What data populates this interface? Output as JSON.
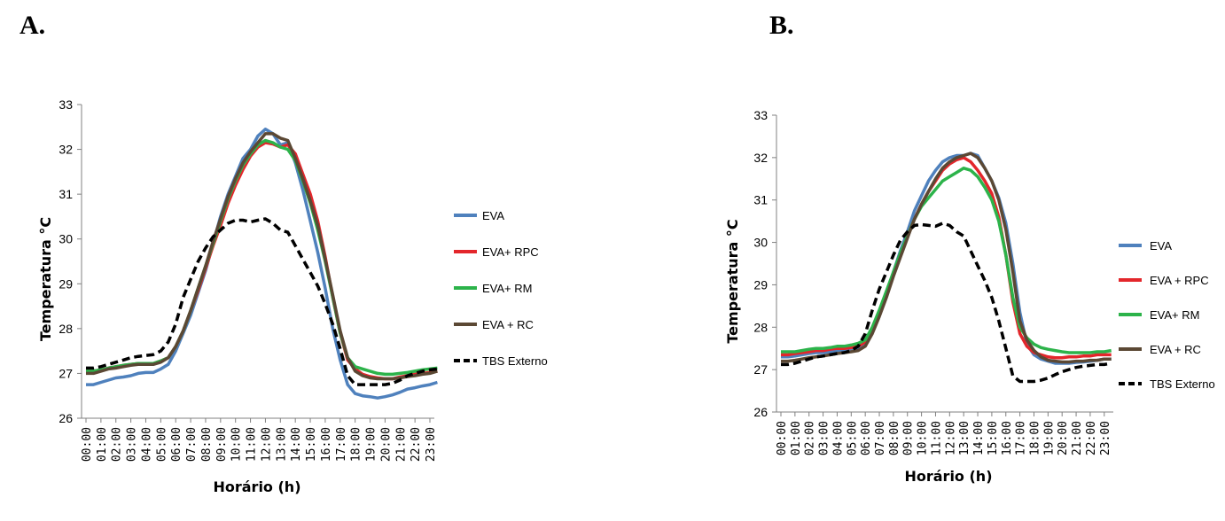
{
  "panels": {
    "a_label": "A.",
    "b_label": "B."
  },
  "chart_data": [
    {
      "type": "line",
      "panel": "A.",
      "xlabel": "Horário (h)",
      "ylabel": "Temperatura °C",
      "ylim": [
        26,
        33
      ],
      "yticks": [
        "26",
        "27",
        "28",
        "29",
        "30",
        "31",
        "32",
        "33"
      ],
      "x_tick_labels": [
        "00:00",
        "01:00",
        "02:00",
        "03:00",
        "04:00",
        "05:00",
        "06:00",
        "07:00",
        "08:00",
        "09:00",
        "10:00",
        "11:00",
        "12:00",
        "13:00",
        "14:00",
        "15:00",
        "16:00",
        "17:00",
        "18:00",
        "19:00",
        "20:00",
        "21:00",
        "22:00",
        "23:00"
      ],
      "x": [
        0,
        0.5,
        1,
        1.5,
        2,
        2.5,
        3,
        3.5,
        4,
        4.5,
        5,
        5.5,
        6,
        6.5,
        7,
        7.5,
        8,
        8.5,
        9,
        9.5,
        10,
        10.5,
        11,
        11.5,
        12,
        12.5,
        13,
        13.5,
        14,
        14.5,
        15,
        15.5,
        16,
        16.5,
        17,
        17.5,
        18,
        18.5,
        19,
        19.5,
        20,
        20.5,
        21,
        21.5,
        22,
        22.5,
        23,
        23.5
      ],
      "legend_position": "right",
      "series": [
        {
          "name": "EVA",
          "color": "#4F81BD",
          "dash": "solid",
          "values": [
            26.75,
            26.75,
            26.8,
            26.85,
            26.9,
            26.92,
            26.95,
            27.0,
            27.02,
            27.02,
            27.1,
            27.2,
            27.5,
            27.9,
            28.3,
            28.8,
            29.3,
            29.9,
            30.5,
            31.0,
            31.4,
            31.8,
            32.0,
            32.3,
            32.45,
            32.35,
            32.1,
            32.15,
            31.7,
            31.1,
            30.4,
            29.7,
            28.9,
            28.0,
            27.3,
            26.75,
            26.55,
            26.5,
            26.48,
            26.45,
            26.48,
            26.52,
            26.58,
            26.65,
            26.68,
            26.72,
            26.75,
            26.8
          ]
        },
        {
          "name": "EVA+ RPC",
          "color": "#E3262B",
          "dash": "solid",
          "values": [
            27.05,
            27.05,
            27.08,
            27.12,
            27.15,
            27.18,
            27.2,
            27.22,
            27.22,
            27.22,
            27.28,
            27.35,
            27.6,
            27.95,
            28.4,
            28.85,
            29.35,
            29.85,
            30.3,
            30.8,
            31.2,
            31.55,
            31.85,
            32.05,
            32.15,
            32.12,
            32.05,
            32.1,
            31.9,
            31.45,
            31.0,
            30.4,
            29.6,
            28.7,
            27.9,
            27.3,
            27.1,
            26.98,
            26.93,
            26.9,
            26.88,
            26.88,
            26.92,
            26.95,
            26.98,
            27.0,
            27.02,
            27.05
          ]
        },
        {
          "name": "EVA+ RM",
          "color": "#2CB34A",
          "dash": "solid",
          "values": [
            27.05,
            27.05,
            27.08,
            27.12,
            27.15,
            27.18,
            27.2,
            27.22,
            27.22,
            27.22,
            27.28,
            27.35,
            27.6,
            27.95,
            28.4,
            28.9,
            29.4,
            29.9,
            30.4,
            30.9,
            31.3,
            31.65,
            31.9,
            32.1,
            32.2,
            32.15,
            32.05,
            32.0,
            31.75,
            31.3,
            30.8,
            30.2,
            29.5,
            28.7,
            27.9,
            27.35,
            27.15,
            27.1,
            27.05,
            27.0,
            26.98,
            26.98,
            27.0,
            27.02,
            27.05,
            27.08,
            27.1,
            27.12
          ]
        },
        {
          "name": "EVA + RC",
          "color": "#5B4834",
          "dash": "solid",
          "values": [
            27.0,
            27.0,
            27.05,
            27.1,
            27.12,
            27.15,
            27.18,
            27.2,
            27.2,
            27.2,
            27.25,
            27.35,
            27.6,
            27.95,
            28.4,
            28.9,
            29.4,
            29.95,
            30.45,
            30.95,
            31.35,
            31.7,
            31.95,
            32.15,
            32.35,
            32.35,
            32.25,
            32.2,
            31.8,
            31.35,
            30.85,
            30.3,
            29.55,
            28.75,
            27.95,
            27.35,
            27.05,
            26.95,
            26.9,
            26.88,
            26.88,
            26.88,
            26.9,
            26.93,
            26.95,
            26.98,
            27.0,
            27.05
          ]
        },
        {
          "name": "TBS Externo",
          "color": "#000000",
          "dash": "dashed",
          "values": [
            27.12,
            27.12,
            27.15,
            27.2,
            27.25,
            27.3,
            27.35,
            27.38,
            27.4,
            27.42,
            27.5,
            27.7,
            28.1,
            28.7,
            29.1,
            29.5,
            29.8,
            30.05,
            30.2,
            30.35,
            30.42,
            30.42,
            30.38,
            30.42,
            30.45,
            30.35,
            30.2,
            30.15,
            29.85,
            29.55,
            29.25,
            28.95,
            28.55,
            28.1,
            27.55,
            26.95,
            26.75,
            26.75,
            26.75,
            26.75,
            26.75,
            26.78,
            26.85,
            26.95,
            27.0,
            27.05,
            27.08,
            27.1
          ]
        }
      ]
    },
    {
      "type": "line",
      "panel": "B.",
      "xlabel": "Horário (h)",
      "ylabel": "Temperatura  °C",
      "ylim": [
        26,
        33
      ],
      "yticks": [
        "26",
        "27",
        "28",
        "29",
        "30",
        "31",
        "32",
        "33"
      ],
      "x_tick_labels": [
        "00:00",
        "01:00",
        "02:00",
        "03:00",
        "04:00",
        "05:00",
        "06:00",
        "07:00",
        "08:00",
        "09:00",
        "10:00",
        "11:00",
        "12:00",
        "13:00",
        "14:00",
        "15:00",
        "16:00",
        "17:00",
        "18:00",
        "19:00",
        "20:00",
        "21:00",
        "22:00",
        "23:00"
      ],
      "x": [
        0,
        0.5,
        1,
        1.5,
        2,
        2.5,
        3,
        3.5,
        4,
        4.5,
        5,
        5.5,
        6,
        6.5,
        7,
        7.5,
        8,
        8.5,
        9,
        9.5,
        10,
        10.5,
        11,
        11.5,
        12,
        12.5,
        13,
        13.5,
        14,
        14.5,
        15,
        15.5,
        16,
        16.5,
        17,
        17.5,
        18,
        18.5,
        19,
        19.5,
        20,
        20.5,
        21,
        21.5,
        22,
        22.5,
        23,
        23.5
      ],
      "legend_position": "right",
      "series": [
        {
          "name": "EVA",
          "color": "#4F81BD",
          "dash": "solid",
          "values": [
            27.3,
            27.3,
            27.32,
            27.35,
            27.38,
            27.4,
            27.4,
            27.42,
            27.45,
            27.45,
            27.48,
            27.5,
            27.6,
            27.9,
            28.3,
            28.8,
            29.3,
            29.8,
            30.25,
            30.75,
            31.1,
            31.45,
            31.7,
            31.9,
            32.0,
            32.05,
            32.05,
            32.1,
            32.05,
            31.75,
            31.45,
            31.05,
            30.45,
            29.5,
            28.35,
            27.6,
            27.35,
            27.25,
            27.2,
            27.15,
            27.15,
            27.15,
            27.17,
            27.18,
            27.2,
            27.22,
            27.25,
            27.25
          ]
        },
        {
          "name": "EVA + RPC",
          "color": "#E3262B",
          "dash": "solid",
          "values": [
            27.35,
            27.35,
            27.38,
            27.4,
            27.42,
            27.45,
            27.45,
            27.48,
            27.5,
            27.5,
            27.52,
            27.55,
            27.65,
            27.95,
            28.35,
            28.8,
            29.25,
            29.7,
            30.15,
            30.55,
            30.9,
            31.2,
            31.45,
            31.7,
            31.85,
            31.95,
            32.0,
            31.9,
            31.7,
            31.45,
            31.15,
            30.6,
            29.7,
            28.6,
            27.85,
            27.55,
            27.4,
            27.35,
            27.3,
            27.28,
            27.28,
            27.3,
            27.3,
            27.32,
            27.32,
            27.35,
            27.35,
            27.35
          ]
        },
        {
          "name": "EVA+ RM",
          "color": "#2CB34A",
          "dash": "solid",
          "values": [
            27.42,
            27.42,
            27.42,
            27.45,
            27.48,
            27.5,
            27.5,
            27.52,
            27.55,
            27.55,
            27.58,
            27.62,
            27.7,
            28.0,
            28.4,
            28.85,
            29.3,
            29.75,
            30.15,
            30.55,
            30.85,
            31.05,
            31.25,
            31.45,
            31.55,
            31.65,
            31.75,
            31.7,
            31.55,
            31.3,
            31.0,
            30.5,
            29.7,
            28.7,
            28.0,
            27.75,
            27.6,
            27.52,
            27.48,
            27.45,
            27.42,
            27.4,
            27.4,
            27.4,
            27.4,
            27.42,
            27.42,
            27.45
          ]
        },
        {
          "name": "EVA + RC",
          "color": "#5B4834",
          "dash": "solid",
          "values": [
            27.2,
            27.2,
            27.22,
            27.25,
            27.28,
            27.3,
            27.32,
            27.35,
            27.38,
            27.4,
            27.42,
            27.45,
            27.55,
            27.85,
            28.25,
            28.7,
            29.2,
            29.65,
            30.1,
            30.55,
            30.9,
            31.2,
            31.5,
            31.75,
            31.9,
            32.0,
            32.05,
            32.1,
            32.0,
            31.75,
            31.45,
            31.0,
            30.3,
            29.3,
            28.15,
            27.7,
            27.45,
            27.3,
            27.22,
            27.2,
            27.18,
            27.18,
            27.2,
            27.2,
            27.22,
            27.22,
            27.25,
            27.25
          ]
        },
        {
          "name": "TBS Externo",
          "color": "#000000",
          "dash": "dashed",
          "values": [
            27.12,
            27.12,
            27.15,
            27.2,
            27.25,
            27.3,
            27.32,
            27.35,
            27.38,
            27.4,
            27.45,
            27.55,
            27.85,
            28.4,
            28.9,
            29.3,
            29.7,
            30.05,
            30.25,
            30.4,
            30.42,
            30.4,
            30.38,
            30.45,
            30.4,
            30.25,
            30.15,
            29.8,
            29.45,
            29.1,
            28.7,
            28.15,
            27.5,
            26.85,
            26.72,
            26.72,
            26.72,
            26.75,
            26.8,
            26.88,
            26.95,
            27.0,
            27.05,
            27.08,
            27.1,
            27.12,
            27.12,
            27.15
          ]
        }
      ]
    }
  ]
}
